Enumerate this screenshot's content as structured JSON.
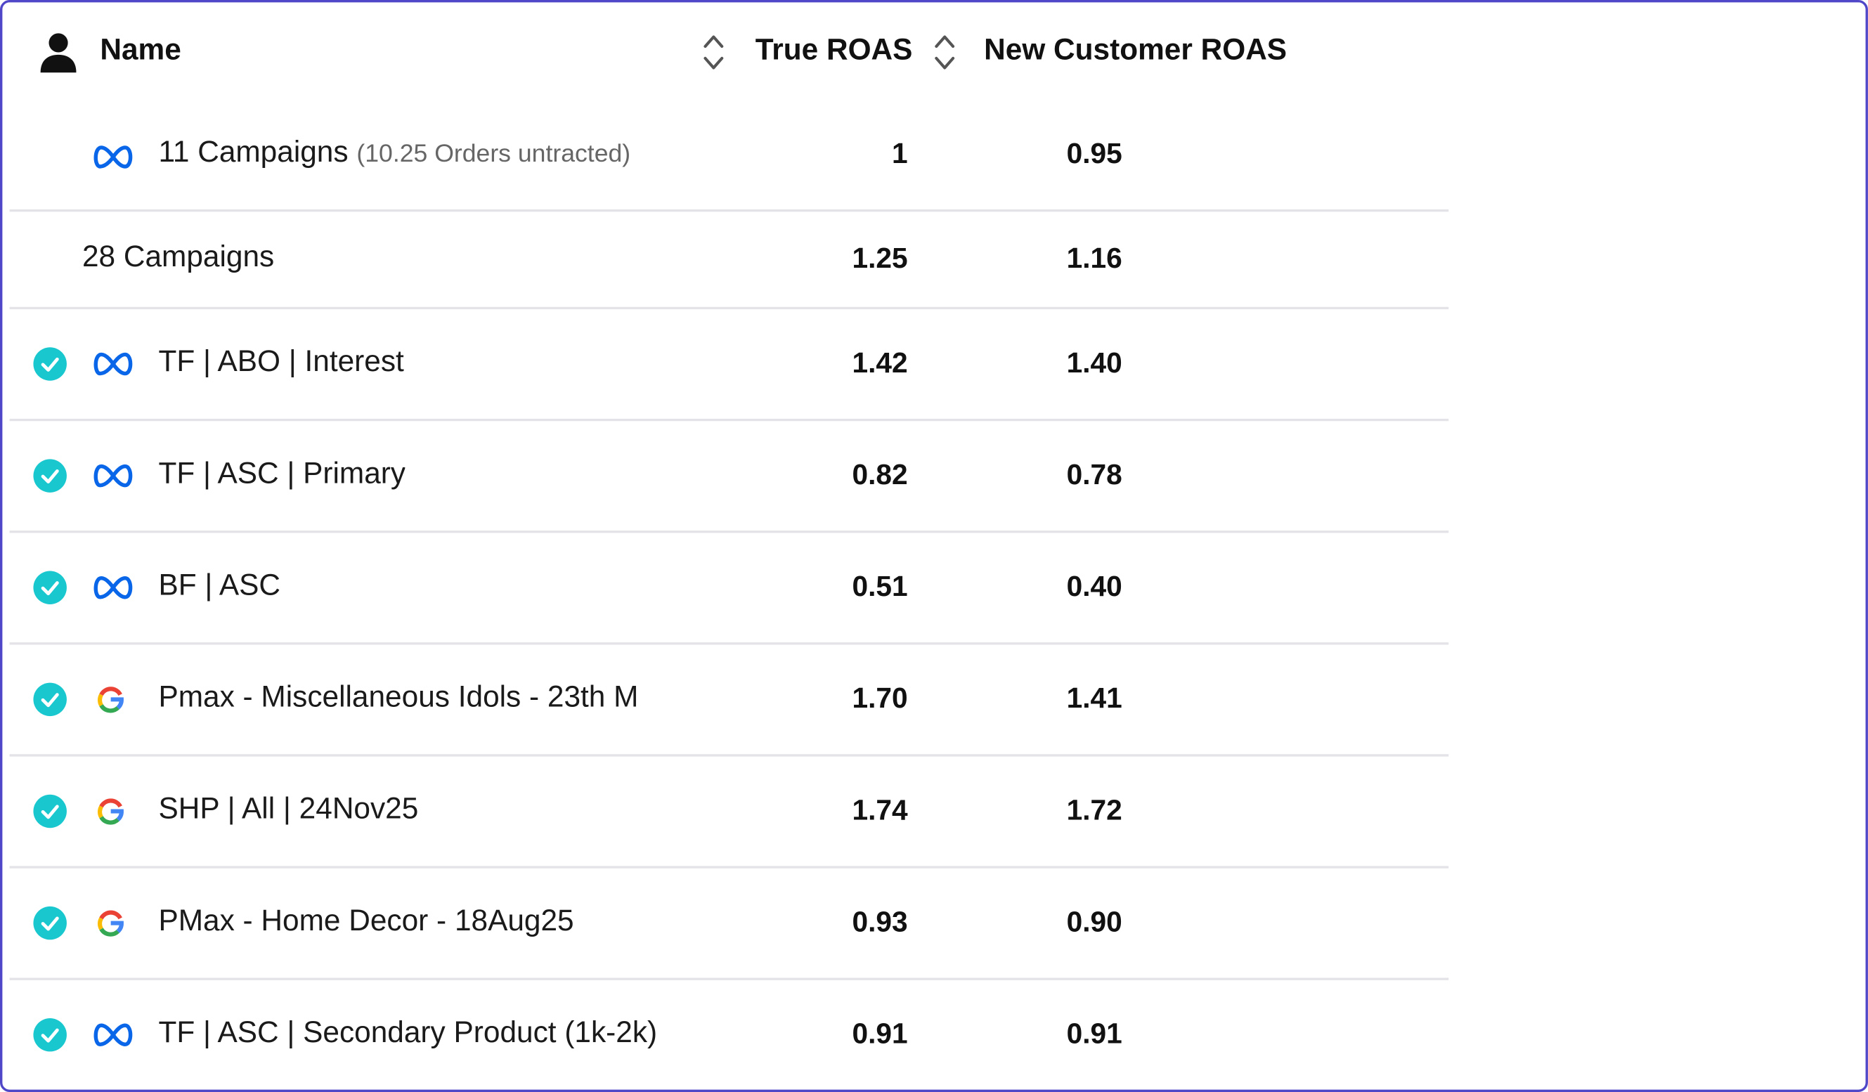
{
  "header": {
    "name_label": "Name",
    "col1_label": "True ROAS",
    "col2_label": "New Customer ROAS"
  },
  "summary_rows": [
    {
      "platform": "meta",
      "name": "11 Campaigns",
      "note": "(10.25 Orders untracted)",
      "true_roas": "1",
      "new_customer_roas": "0.95"
    },
    {
      "platform": "none",
      "name": "28 Campaigns",
      "note": "",
      "true_roas": "1.25",
      "new_customer_roas": "1.16"
    }
  ],
  "rows": [
    {
      "platform": "meta",
      "name": "TF | ABO | Interest",
      "true_roas": "1.42",
      "new_customer_roas": "1.40",
      "checked": true
    },
    {
      "platform": "meta",
      "name": "TF | ASC | Primary",
      "true_roas": "0.82",
      "new_customer_roas": "0.78",
      "checked": true
    },
    {
      "platform": "meta",
      "name": "BF | ASC",
      "true_roas": "0.51",
      "new_customer_roas": "0.40",
      "checked": true
    },
    {
      "platform": "google",
      "name": "Pmax - Miscellaneous Idols - 23th M",
      "true_roas": "1.70",
      "new_customer_roas": "1.41",
      "checked": true
    },
    {
      "platform": "google",
      "name": "SHP | All | 24Nov25",
      "true_roas": "1.74",
      "new_customer_roas": "1.72",
      "checked": true
    },
    {
      "platform": "google",
      "name": "PMax - Home Decor - 18Aug25",
      "true_roas": "0.93",
      "new_customer_roas": "0.90",
      "checked": true
    },
    {
      "platform": "meta",
      "name": "TF | ASC | Secondary Product (1k-2k)",
      "true_roas": "0.91",
      "new_customer_roas": "0.91",
      "checked": true
    }
  ],
  "colors": {
    "frame_border": "#4f46c8",
    "check": "#19c7cf",
    "meta_blue": "#0a66e8",
    "row_divider": "#e4e4e8"
  },
  "icons": [
    "person-icon",
    "sort-icon",
    "meta-icon",
    "google-icon",
    "check-circle-icon"
  ]
}
